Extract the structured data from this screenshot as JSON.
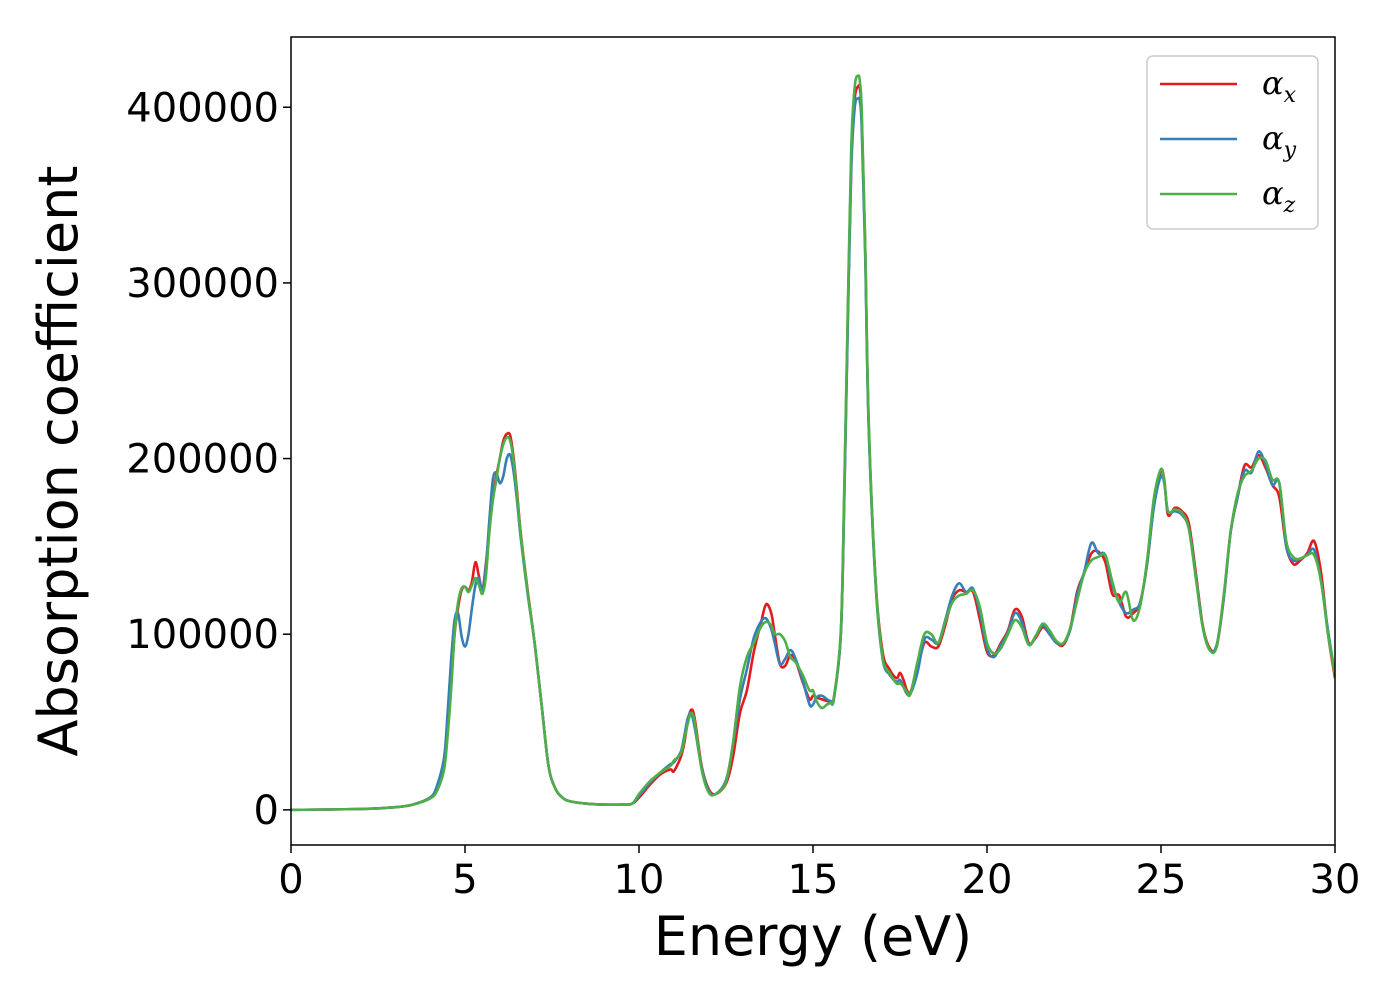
{
  "chart_data": {
    "type": "line",
    "xlabel": "Energy (eV)",
    "ylabel": "Absorption coefficient",
    "xlim": [
      0,
      30
    ],
    "ylim": [
      -20000,
      440000
    ],
    "xticks": [
      0,
      5,
      10,
      15,
      20,
      25,
      30
    ],
    "yticks": [
      0,
      100000,
      200000,
      300000,
      400000
    ],
    "grid": false,
    "legend_position": "top-right",
    "series": [
      {
        "name_main": "α",
        "name_sub": "x",
        "color": "#e41a1c",
        "x": [
          0,
          2,
          3,
          3.5,
          4,
          4.2,
          4.4,
          4.5,
          4.6,
          4.7,
          4.8,
          4.9,
          5.0,
          5.1,
          5.2,
          5.3,
          5.4,
          5.5,
          5.6,
          5.7,
          5.8,
          5.9,
          6.0,
          6.1,
          6.2,
          6.3,
          6.4,
          6.5,
          6.6,
          6.8,
          7.0,
          7.2,
          7.4,
          7.6,
          7.8,
          8.0,
          8.5,
          9.0,
          9.5,
          9.8,
          10.0,
          10.3,
          10.6,
          10.9,
          11.0,
          11.2,
          11.3,
          11.4,
          11.5,
          11.6,
          11.8,
          12.0,
          12.2,
          12.5,
          12.7,
          12.9,
          13.1,
          13.3,
          13.5,
          13.65,
          13.8,
          13.9,
          14.05,
          14.2,
          14.35,
          14.5,
          14.7,
          14.9,
          15.0,
          15.1,
          15.25,
          15.4,
          15.5,
          15.6,
          15.8,
          15.9,
          16.0,
          16.1,
          16.2,
          16.3,
          16.35,
          16.4,
          16.5,
          16.6,
          16.8,
          17.0,
          17.2,
          17.4,
          17.5,
          17.6,
          17.7,
          17.8,
          18.0,
          18.2,
          18.4,
          18.6,
          18.8,
          19.0,
          19.2,
          19.4,
          19.6,
          19.8,
          20.0,
          20.2,
          20.4,
          20.6,
          20.8,
          21.0,
          21.2,
          21.4,
          21.6,
          21.8,
          22.0,
          22.2,
          22.4,
          22.6,
          22.8,
          23.0,
          23.2,
          23.4,
          23.6,
          23.8,
          24.0,
          24.2,
          24.4,
          24.6,
          24.8,
          25.0,
          25.1,
          25.2,
          25.4,
          25.6,
          25.8,
          26.0,
          26.2,
          26.4,
          26.6,
          26.8,
          27.0,
          27.2,
          27.4,
          27.6,
          27.8,
          28.0,
          28.2,
          28.4,
          28.6,
          28.8,
          29.0,
          29.2,
          29.4,
          29.6,
          29.8,
          30.0
        ],
        "y": [
          0,
          500,
          1500,
          3000,
          7000,
          12000,
          25000,
          45000,
          70000,
          100000,
          115000,
          125000,
          127000,
          125000,
          130000,
          141000,
          133000,
          125000,
          140000,
          160000,
          178000,
          190000,
          200000,
          210000,
          214000,
          213000,
          200000,
          180000,
          158000,
          125000,
          95000,
          60000,
          25000,
          12000,
          7000,
          5000,
          3500,
          3000,
          3000,
          3500,
          7000,
          14000,
          20000,
          23000,
          22000,
          30000,
          38000,
          50000,
          57000,
          52000,
          25000,
          12000,
          9000,
          15000,
          30000,
          55000,
          68000,
          90000,
          106000,
          117000,
          112000,
          100000,
          83000,
          82000,
          88000,
          85000,
          73000,
          63000,
          65000,
          64000,
          63000,
          62000,
          62000,
          64000,
          100000,
          180000,
          280000,
          370000,
          405000,
          412000,
          410000,
          395000,
          320000,
          220000,
          130000,
          90000,
          80000,
          75000,
          78000,
          74000,
          68000,
          67000,
          80000,
          95000,
          93000,
          93000,
          105000,
          120000,
          125000,
          124000,
          124000,
          108000,
          90000,
          88000,
          95000,
          102000,
          114000,
          110000,
          95000,
          98000,
          104000,
          100000,
          95000,
          94000,
          104000,
          125000,
          135000,
          146000,
          147000,
          141000,
          123000,
          122000,
          110000,
          112000,
          118000,
          140000,
          175000,
          193000,
          187000,
          168000,
          172000,
          170000,
          163000,
          135000,
          105000,
          92000,
          93000,
          120000,
          158000,
          178000,
          196000,
          195000,
          202000,
          195000,
          185000,
          178000,
          150000,
          140000,
          142000,
          146000,
          153000,
          135000,
          100000,
          75000
        ]
      },
      {
        "name_main": "α",
        "name_sub": "y",
        "color": "#377eb8",
        "x": [
          0,
          2,
          3,
          3.5,
          4,
          4.2,
          4.4,
          4.5,
          4.6,
          4.7,
          4.8,
          4.9,
          5.0,
          5.1,
          5.2,
          5.3,
          5.4,
          5.5,
          5.6,
          5.7,
          5.8,
          5.9,
          6.0,
          6.1,
          6.2,
          6.3,
          6.4,
          6.5,
          6.6,
          6.8,
          7.0,
          7.2,
          7.4,
          7.6,
          7.8,
          8.0,
          8.5,
          9.0,
          9.5,
          9.8,
          10.0,
          10.3,
          10.6,
          10.9,
          11.0,
          11.2,
          11.3,
          11.4,
          11.5,
          11.6,
          11.8,
          12.0,
          12.2,
          12.5,
          12.7,
          12.9,
          13.1,
          13.3,
          13.5,
          13.65,
          13.8,
          13.9,
          14.05,
          14.2,
          14.35,
          14.5,
          14.7,
          14.9,
          15.0,
          15.1,
          15.25,
          15.4,
          15.5,
          15.6,
          15.8,
          15.9,
          16.0,
          16.1,
          16.2,
          16.3,
          16.35,
          16.4,
          16.5,
          16.6,
          16.8,
          17.0,
          17.2,
          17.4,
          17.5,
          17.6,
          17.7,
          17.8,
          18.0,
          18.2,
          18.4,
          18.6,
          18.8,
          19.0,
          19.2,
          19.4,
          19.6,
          19.8,
          20.0,
          20.2,
          20.4,
          20.6,
          20.8,
          21.0,
          21.2,
          21.4,
          21.6,
          21.8,
          22.0,
          22.2,
          22.4,
          22.6,
          22.8,
          23.0,
          23.2,
          23.4,
          23.6,
          23.8,
          24.0,
          24.2,
          24.4,
          24.6,
          24.8,
          25.0,
          25.1,
          25.2,
          25.4,
          25.6,
          25.8,
          26.0,
          26.2,
          26.4,
          26.6,
          26.8,
          27.0,
          27.2,
          27.4,
          27.6,
          27.8,
          28.0,
          28.2,
          28.4,
          28.6,
          28.8,
          29.0,
          29.2,
          29.4,
          29.6,
          29.8,
          30.0
        ],
        "y": [
          0,
          500,
          1500,
          3000,
          7000,
          14000,
          30000,
          55000,
          85000,
          108000,
          112000,
          99000,
          93000,
          100000,
          115000,
          128000,
          132000,
          125000,
          138000,
          165000,
          188000,
          192000,
          186000,
          190000,
          200000,
          202000,
          192000,
          175000,
          155000,
          123000,
          95000,
          60000,
          25000,
          12000,
          7000,
          5000,
          3500,
          3000,
          3000,
          3500,
          8000,
          15000,
          21000,
          26000,
          27000,
          33000,
          42000,
          52000,
          55000,
          47000,
          24000,
          11000,
          9000,
          17000,
          37000,
          63000,
          80000,
          98000,
          107000,
          109000,
          103000,
          95000,
          83000,
          86000,
          91000,
          86000,
          74000,
          60000,
          60000,
          64000,
          65000,
          63000,
          62000,
          63000,
          100000,
          178000,
          276000,
          365000,
          400000,
          405000,
          403000,
          388000,
          315000,
          218000,
          128000,
          86000,
          77000,
          73000,
          74000,
          70000,
          66000,
          66000,
          78000,
          97000,
          97000,
          95000,
          108000,
          122000,
          129000,
          124000,
          126000,
          112000,
          92000,
          87000,
          94000,
          101000,
          112000,
          107000,
          94000,
          99000,
          105000,
          100000,
          95000,
          95000,
          103000,
          123000,
          136000,
          152000,
          146000,
          145000,
          128000,
          118000,
          112000,
          114000,
          118000,
          140000,
          173000,
          190000,
          185000,
          170000,
          170000,
          168000,
          160000,
          133000,
          104000,
          91000,
          94000,
          120000,
          158000,
          178000,
          193000,
          192000,
          204000,
          197000,
          185000,
          186000,
          150000,
          142000,
          143000,
          145000,
          148000,
          130000,
          102000,
          77000
        ]
      },
      {
        "name_main": "α",
        "name_sub": "z",
        "color": "#4daf4a",
        "x": [
          0,
          2,
          3,
          3.5,
          4,
          4.2,
          4.4,
          4.5,
          4.6,
          4.7,
          4.8,
          4.9,
          5.0,
          5.1,
          5.2,
          5.3,
          5.4,
          5.5,
          5.6,
          5.7,
          5.8,
          5.9,
          6.0,
          6.1,
          6.2,
          6.3,
          6.4,
          6.5,
          6.6,
          6.8,
          7.0,
          7.2,
          7.4,
          7.6,
          7.8,
          8.0,
          8.5,
          9.0,
          9.5,
          9.8,
          10.0,
          10.3,
          10.6,
          10.9,
          11.0,
          11.2,
          11.3,
          11.4,
          11.5,
          11.6,
          11.8,
          12.0,
          12.2,
          12.5,
          12.7,
          12.9,
          13.1,
          13.3,
          13.5,
          13.65,
          13.8,
          13.9,
          14.05,
          14.2,
          14.35,
          14.5,
          14.7,
          14.9,
          15.0,
          15.1,
          15.25,
          15.4,
          15.5,
          15.6,
          15.8,
          15.9,
          16.0,
          16.1,
          16.2,
          16.3,
          16.35,
          16.4,
          16.5,
          16.6,
          16.8,
          17.0,
          17.2,
          17.4,
          17.5,
          17.6,
          17.7,
          17.8,
          18.0,
          18.2,
          18.4,
          18.6,
          18.8,
          19.0,
          19.2,
          19.4,
          19.6,
          19.8,
          20.0,
          20.2,
          20.4,
          20.6,
          20.8,
          21.0,
          21.2,
          21.4,
          21.6,
          21.8,
          22.0,
          22.2,
          22.4,
          22.6,
          22.8,
          23.0,
          23.2,
          23.4,
          23.6,
          23.8,
          24.0,
          24.2,
          24.4,
          24.6,
          24.8,
          25.0,
          25.1,
          25.2,
          25.4,
          25.6,
          25.8,
          26.0,
          26.2,
          26.4,
          26.6,
          26.8,
          27.0,
          27.2,
          27.4,
          27.6,
          27.8,
          28.0,
          28.2,
          28.4,
          28.6,
          28.8,
          29.0,
          29.2,
          29.4,
          29.6,
          29.8,
          30.0
        ],
        "y": [
          0,
          500,
          1500,
          3000,
          6500,
          11000,
          23000,
          42000,
          68000,
          100000,
          118000,
          126000,
          127000,
          124000,
          128000,
          132000,
          128000,
          123000,
          133000,
          158000,
          176000,
          188000,
          200000,
          208000,
          212000,
          210000,
          198000,
          178000,
          157000,
          124000,
          95000,
          60000,
          25000,
          12000,
          7000,
          5000,
          3500,
          3000,
          3000,
          3500,
          9000,
          16000,
          21000,
          25000,
          28000,
          32000,
          40000,
          49000,
          55000,
          50000,
          23000,
          10000,
          9000,
          16000,
          38000,
          70000,
          87000,
          95000,
          104000,
          107000,
          105000,
          100000,
          100000,
          96000,
          87000,
          84000,
          77000,
          68000,
          68000,
          62000,
          58000,
          60000,
          61000,
          64000,
          102000,
          185000,
          285000,
          378000,
          412000,
          418000,
          414000,
          398000,
          322000,
          222000,
          130000,
          87000,
          78000,
          72000,
          72000,
          70000,
          67000,
          66000,
          84000,
          100000,
          100000,
          95000,
          107000,
          118000,
          122000,
          123000,
          125000,
          115000,
          95000,
          89000,
          92000,
          100000,
          108000,
          104000,
          94000,
          99000,
          106000,
          102000,
          96000,
          95000,
          104000,
          120000,
          135000,
          142000,
          144000,
          145000,
          130000,
          118000,
          124000,
          108000,
          116000,
          142000,
          178000,
          194000,
          186000,
          170000,
          171000,
          169000,
          160000,
          132000,
          104000,
          91000,
          93000,
          122000,
          158000,
          180000,
          190000,
          193000,
          200000,
          199000,
          188000,
          186000,
          153000,
          144000,
          143000,
          145000,
          145000,
          130000,
          100000,
          77000
        ]
      }
    ]
  }
}
